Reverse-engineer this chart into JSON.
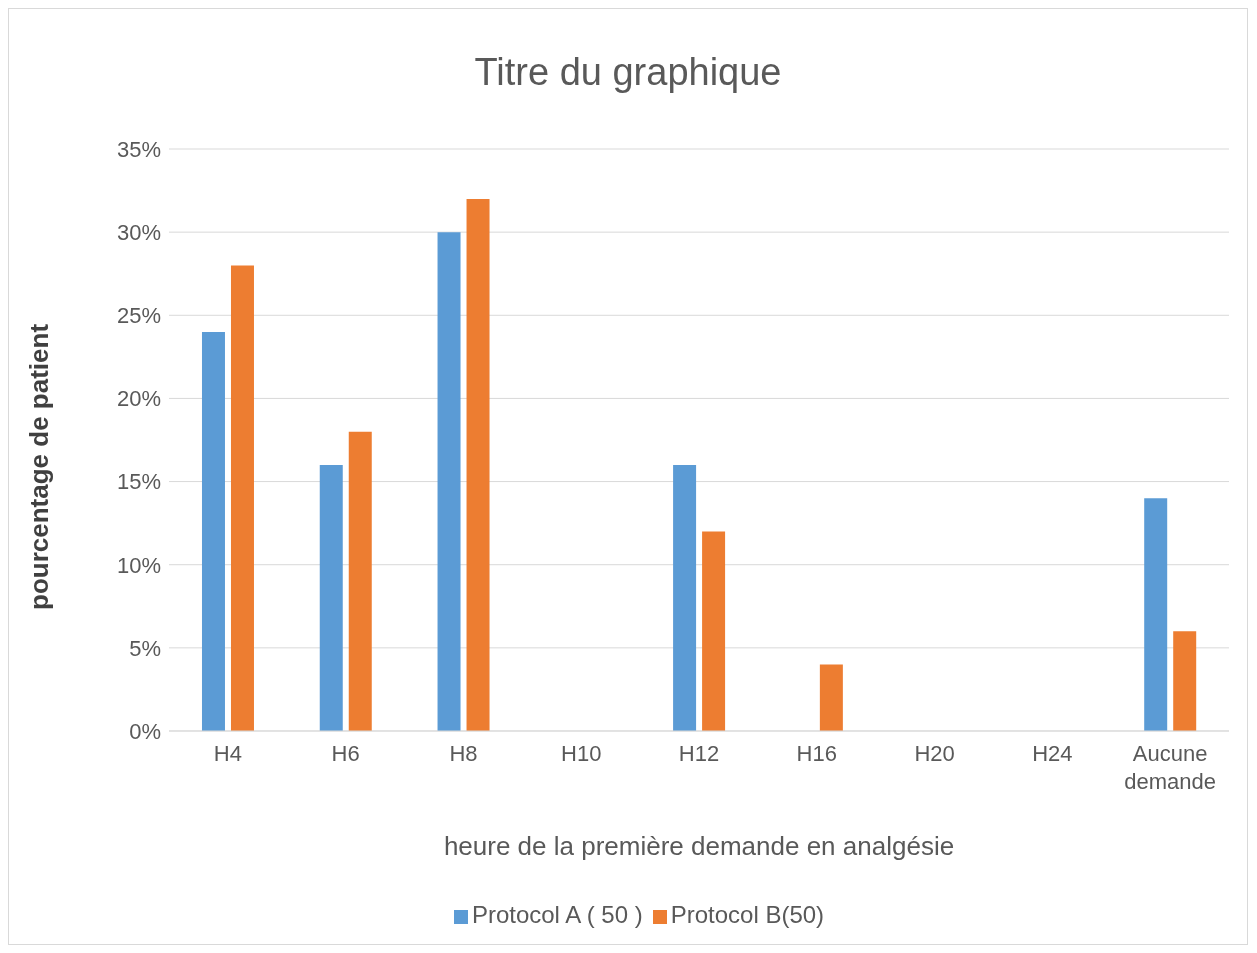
{
  "chart_data": {
    "type": "bar",
    "title": "Titre du graphique",
    "xlabel": "heure de la première demande en analgésie",
    "ylabel": "pourcentage de patient",
    "categories": [
      "H4",
      "H6",
      "H8",
      "H10",
      "H12",
      "H16",
      "H20",
      "H24",
      "Aucune demande"
    ],
    "series": [
      {
        "name": "Protocol A ( 50 )",
        "color": "#5b9bd5",
        "values": [
          24,
          16,
          30,
          0,
          16,
          0,
          0,
          0,
          14
        ]
      },
      {
        "name": "Protocol B(50)",
        "color": "#ed7d31",
        "values": [
          28,
          18,
          32,
          0,
          12,
          4,
          0,
          0,
          6
        ]
      }
    ],
    "ylim": [
      0,
      35
    ],
    "yticks": [
      {
        "value": 0,
        "label": "0%"
      },
      {
        "value": 5,
        "label": "5%"
      },
      {
        "value": 10,
        "label": "10%"
      },
      {
        "value": 15,
        "label": "15%"
      },
      {
        "value": 20,
        "label": "20%"
      },
      {
        "value": 25,
        "label": "25%"
      },
      {
        "value": 30,
        "label": "30%"
      },
      {
        "value": 35,
        "label": "35%"
      }
    ],
    "grid": "y",
    "legend": "bottom"
  }
}
